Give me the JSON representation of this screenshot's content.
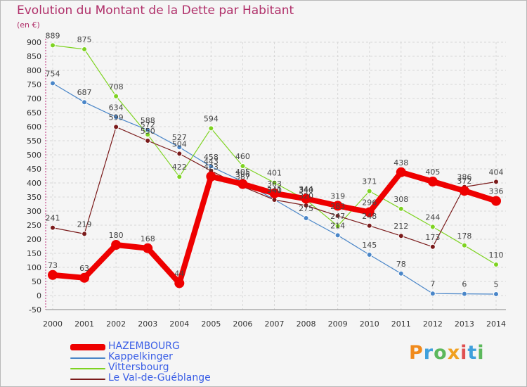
{
  "title": "Evolution du Montant de la Dette par Habitant",
  "unit": "(en €)",
  "brand": {
    "letters": [
      "P",
      "r",
      "o",
      "x",
      "i",
      "t",
      "i"
    ],
    "colors": [
      "#f08a1c",
      "#3fa0dc",
      "#5cb85c",
      "#f0a020",
      "#e05050",
      "#3fa0dc",
      "#5cb85c"
    ]
  },
  "chart_data": {
    "type": "line",
    "x": [
      "2000",
      "2001",
      "2002",
      "2003",
      "2004",
      "2005",
      "2006",
      "2007",
      "2008",
      "2009",
      "2010",
      "2011",
      "2012",
      "2013",
      "2014"
    ],
    "ylim": [
      -50,
      900
    ],
    "yticks": [
      -50,
      0,
      50,
      100,
      150,
      200,
      250,
      300,
      350,
      400,
      450,
      500,
      550,
      600,
      650,
      700,
      750,
      800,
      850,
      900
    ],
    "grid": true,
    "legend_position": "bottom-left",
    "series": [
      {
        "name": "HAZEMBOURG",
        "color": "#ee0000",
        "values": [
          73,
          63,
          180,
          168,
          44,
          423,
          396,
          363,
          344,
          319,
          296,
          438,
          405,
          372,
          336
        ]
      },
      {
        "name": "Kappelkinger",
        "color": "#4a86c8",
        "values": [
          754,
          687,
          634,
          588,
          527,
          458,
          405,
          341,
          275,
          214,
          145,
          78,
          7,
          6,
          5
        ]
      },
      {
        "name": "Vittersbourg",
        "color": "#7ed321",
        "values": [
          889,
          875,
          708,
          572,
          422,
          594,
          460,
          401,
          340,
          247,
          371,
          308,
          244,
          178,
          110
        ]
      },
      {
        "name": "Le Val-de-Guéblange",
        "color": "#7a1a1a",
        "values": [
          241,
          219,
          599,
          550,
          504,
          443,
          387,
          340,
          320,
          283,
          248,
          212,
          173,
          386,
          404
        ]
      }
    ],
    "labels": [
      {
        "series": 0,
        "texts": [
          "73",
          "63",
          "180",
          "168",
          "44",
          "423",
          "396",
          "363",
          "344",
          "319",
          "296",
          "438",
          "405",
          "372",
          "336"
        ]
      },
      {
        "series": 1,
        "texts": [
          "754",
          "687",
          "634",
          "588",
          "527",
          "458",
          "405",
          "341",
          "275",
          "214",
          "145",
          "78",
          "7",
          "6",
          "5"
        ]
      },
      {
        "series": 2,
        "texts": [
          "889",
          "875",
          "708",
          "572",
          "422",
          "594",
          "460",
          "401",
          "340",
          "247",
          "371",
          "308",
          "244",
          "178",
          "110"
        ]
      },
      {
        "series": 3,
        "texts": [
          "241",
          "219",
          "599",
          "550",
          "504",
          "443",
          "387",
          "340",
          "320",
          "283",
          "248",
          "212",
          "173",
          "386",
          "404"
        ]
      }
    ]
  }
}
